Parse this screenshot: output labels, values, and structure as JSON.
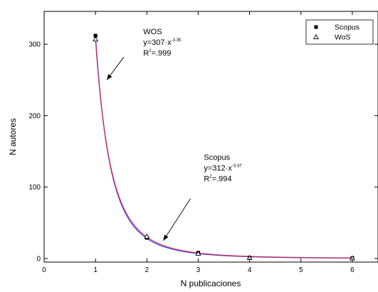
{
  "chart_data": {
    "type": "scatter",
    "xlabel": "N publicaciones",
    "ylabel": "N autores",
    "xlim": [
      0,
      6.5
    ],
    "ylim": [
      -5,
      346
    ],
    "xticks": [
      0,
      1,
      2,
      3,
      4,
      5,
      6
    ],
    "yticks": [
      0,
      100,
      200,
      300
    ],
    "x_tick_labels": [
      "0",
      "1",
      "2",
      "3",
      "4",
      "5",
      "6"
    ],
    "y_tick_labels": [
      "0",
      "100",
      "200",
      "300"
    ],
    "grid": false,
    "legend_position": "top-right",
    "series": [
      {
        "name": "Scopus",
        "marker": "filled-square",
        "color": "#000000",
        "x": [
          1,
          2,
          3,
          4,
          6
        ],
        "y": [
          312,
          29,
          8,
          1,
          0.5
        ]
      },
      {
        "name": "WoS",
        "marker": "open-triangle",
        "color": "#000000",
        "x": [
          1,
          2,
          3,
          4,
          6
        ],
        "y": [
          307,
          31,
          7,
          1,
          0.5
        ]
      }
    ],
    "fits": [
      {
        "series": "Scopus",
        "a": 312,
        "b": -3.47,
        "color": "#1d2fd6"
      },
      {
        "series": "WoS",
        "a": 307,
        "b": -3.35,
        "color": "#d0204f"
      }
    ],
    "annotations": [
      {
        "title": "WOS",
        "eq_base": "y=307·x",
        "eq_exp": "-3.35",
        "r2_pre": "R",
        "r2_sup": "2",
        "r2_post": "=.999",
        "text_at": [
          1.93,
          314
        ],
        "arrow_from": [
          1.55,
          282
        ],
        "arrow_to": [
          1.22,
          250
        ]
      },
      {
        "title": "Scopus",
        "eq_base": "y=312·x",
        "eq_exp": "-3.47",
        "r2_pre": "R",
        "r2_sup": "2",
        "r2_post": "=.994",
        "text_at": [
          3.11,
          138
        ],
        "arrow_from": [
          2.85,
          84
        ],
        "arrow_to": [
          2.32,
          25
        ]
      }
    ]
  }
}
